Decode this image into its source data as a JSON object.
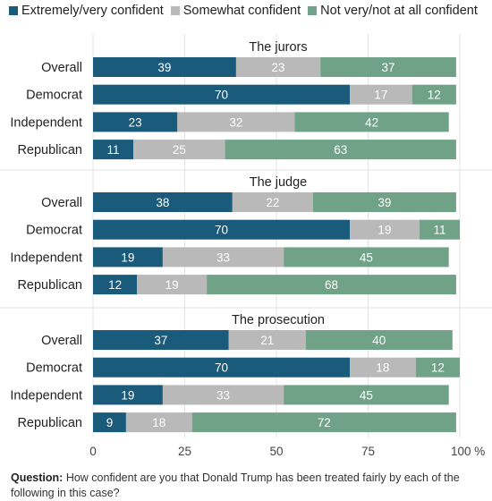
{
  "colors": {
    "high": "#1a5a7a",
    "mid": "#b9b9b9",
    "low": "#6fa287",
    "grid": "#e3e3e3"
  },
  "chart_data": {
    "type": "bar",
    "orientation": "horizontal-stacked",
    "legend": [
      "Extremely/very confident",
      "Somewhat confident",
      "Not very/not at all confident"
    ],
    "legend_position": "top",
    "x_ticks": [
      "0",
      "25",
      "50",
      "75",
      "100 %"
    ],
    "xlim": [
      0,
      100
    ],
    "grid": true,
    "groups": [
      {
        "title": "The jurors",
        "rows": [
          {
            "label": "Overall",
            "values": [
              39,
              23,
              37
            ]
          },
          {
            "label": "Democrat",
            "values": [
              70,
              17,
              12
            ]
          },
          {
            "label": "Independent",
            "values": [
              23,
              32,
              42
            ]
          },
          {
            "label": "Republican",
            "values": [
              11,
              25,
              63
            ]
          }
        ]
      },
      {
        "title": "The judge",
        "rows": [
          {
            "label": "Overall",
            "values": [
              38,
              22,
              39
            ]
          },
          {
            "label": "Democrat",
            "values": [
              70,
              19,
              11
            ]
          },
          {
            "label": "Independent",
            "values": [
              19,
              33,
              45
            ]
          },
          {
            "label": "Republican",
            "values": [
              12,
              19,
              68
            ]
          }
        ]
      },
      {
        "title": "The prosecution",
        "rows": [
          {
            "label": "Overall",
            "values": [
              37,
              21,
              40
            ]
          },
          {
            "label": "Democrat",
            "values": [
              70,
              18,
              12
            ]
          },
          {
            "label": "Independent",
            "values": [
              19,
              33,
              45
            ]
          },
          {
            "label": "Republican",
            "values": [
              9,
              18,
              72
            ]
          }
        ]
      }
    ]
  },
  "footnote": {
    "label": "Question:",
    "text": "How confident are you that Donald Trump has been treated fairly by each of the following in this case?"
  }
}
